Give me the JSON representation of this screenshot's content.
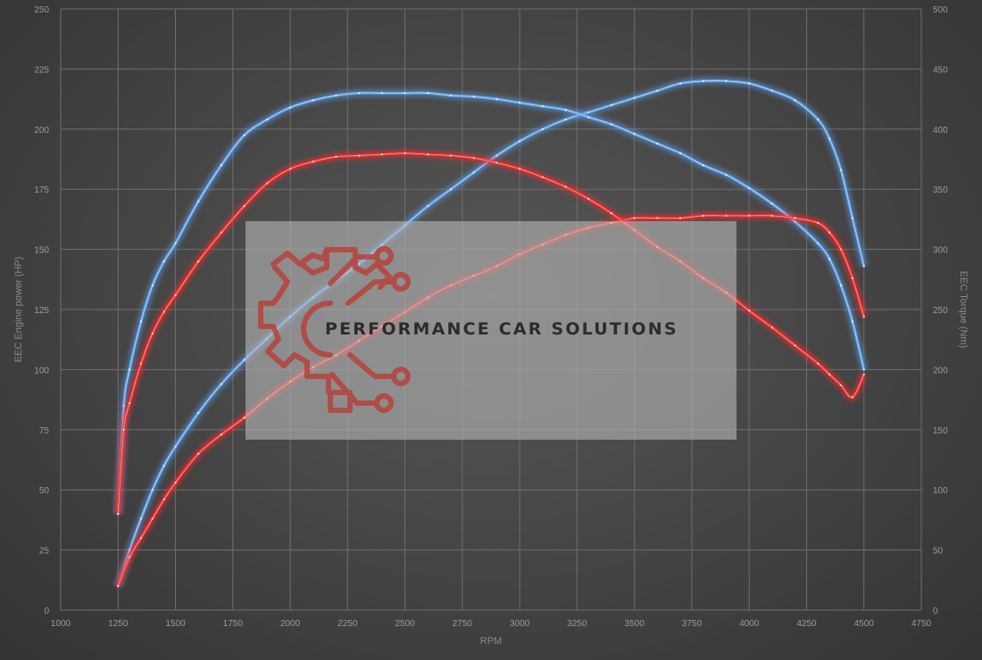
{
  "chart_data": {
    "type": "line",
    "xlabel": "RPM",
    "ylabel_left": "EEC Engine power (HP)",
    "ylabel_right": "EEC Torque (Nm)",
    "xlim": [
      1000,
      4750
    ],
    "xticks": [
      1000,
      1250,
      1500,
      1750,
      2000,
      2250,
      2500,
      2750,
      3000,
      3250,
      3500,
      3750,
      4000,
      4250,
      4500,
      4750
    ],
    "ylim_left": [
      0,
      250
    ],
    "yticks_left": [
      0,
      25,
      50,
      75,
      100,
      125,
      150,
      175,
      200,
      225,
      250
    ],
    "ylim_right": [
      0,
      500
    ],
    "yticks_right": [
      0,
      50,
      100,
      150,
      200,
      250,
      300,
      350,
      400,
      450,
      500
    ],
    "grid": true,
    "series": [
      {
        "axis": "left",
        "color": "#5d9fe8",
        "x": [
          1250,
          1300,
          1350,
          1400,
          1450,
          1500,
          1600,
          1700,
          1800,
          1900,
          2000,
          2100,
          2200,
          2300,
          2400,
          2500,
          2600,
          2700,
          2800,
          2900,
          3000,
          3100,
          3200,
          3300,
          3400,
          3500,
          3600,
          3700,
          3800,
          3900,
          4000,
          4100,
          4200,
          4300,
          4350,
          4400,
          4450,
          4500
        ],
        "values": [
          10,
          25,
          38,
          50,
          60,
          68,
          82,
          94,
          104,
          113,
          122,
          130,
          137,
          144,
          152,
          160,
          168,
          175,
          182,
          189,
          195,
          200,
          204,
          207,
          210,
          213,
          216,
          219,
          220,
          220,
          219,
          216,
          212,
          204,
          196,
          183,
          163,
          143
        ]
      },
      {
        "axis": "right",
        "color": "#5d9fe8",
        "x": [
          1250,
          1275,
          1300,
          1350,
          1400,
          1450,
          1500,
          1600,
          1700,
          1800,
          1900,
          2000,
          2100,
          2200,
          2300,
          2400,
          2500,
          2600,
          2700,
          2800,
          2900,
          3000,
          3100,
          3200,
          3300,
          3400,
          3500,
          3600,
          3700,
          3800,
          3900,
          4000,
          4100,
          4200,
          4300,
          4350,
          4400,
          4450,
          4500
        ],
        "values": [
          80,
          170,
          200,
          240,
          270,
          290,
          305,
          340,
          370,
          395,
          408,
          418,
          424,
          428,
          430,
          430,
          430,
          430,
          428,
          427,
          425,
          422,
          419,
          416,
          410,
          404,
          396,
          388,
          380,
          370,
          362,
          351,
          338,
          323,
          305,
          292,
          270,
          240,
          200
        ]
      },
      {
        "axis": "left",
        "color": "#ff2a2a",
        "x": [
          1250,
          1300,
          1350,
          1400,
          1450,
          1500,
          1600,
          1700,
          1800,
          1900,
          2000,
          2100,
          2200,
          2300,
          2400,
          2500,
          2600,
          2700,
          2800,
          2900,
          3000,
          3100,
          3200,
          3300,
          3400,
          3500,
          3600,
          3700,
          3800,
          3900,
          4000,
          4100,
          4200,
          4300,
          4350,
          4400,
          4450,
          4500
        ],
        "values": [
          10,
          22,
          30,
          38,
          46,
          53,
          65,
          73,
          80,
          88,
          95,
          101,
          106,
          112,
          118,
          124,
          130,
          135,
          139,
          143,
          148,
          152,
          156,
          159,
          161,
          163,
          163,
          163,
          164,
          164,
          164,
          164,
          163,
          161,
          157,
          150,
          138,
          122
        ]
      },
      {
        "axis": "right",
        "color": "#ff2a2a",
        "x": [
          1250,
          1275,
          1300,
          1350,
          1400,
          1450,
          1500,
          1600,
          1700,
          1800,
          1900,
          2000,
          2100,
          2200,
          2300,
          2400,
          2500,
          2600,
          2700,
          2800,
          2900,
          3000,
          3100,
          3200,
          3300,
          3400,
          3500,
          3600,
          3700,
          3800,
          3900,
          4000,
          4100,
          4200,
          4300,
          4350,
          4400,
          4450,
          4500
        ],
        "values": [
          80,
          150,
          172,
          205,
          230,
          248,
          262,
          290,
          314,
          336,
          355,
          367,
          373,
          377,
          378,
          379,
          380,
          379,
          378,
          376,
          372,
          367,
          360,
          352,
          342,
          330,
          316,
          302,
          290,
          276,
          264,
          249,
          235,
          220,
          205,
          196,
          187,
          177,
          196
        ]
      }
    ]
  },
  "logo": {
    "text": "PERFORMANCE CAR SOLUTIONS"
  }
}
